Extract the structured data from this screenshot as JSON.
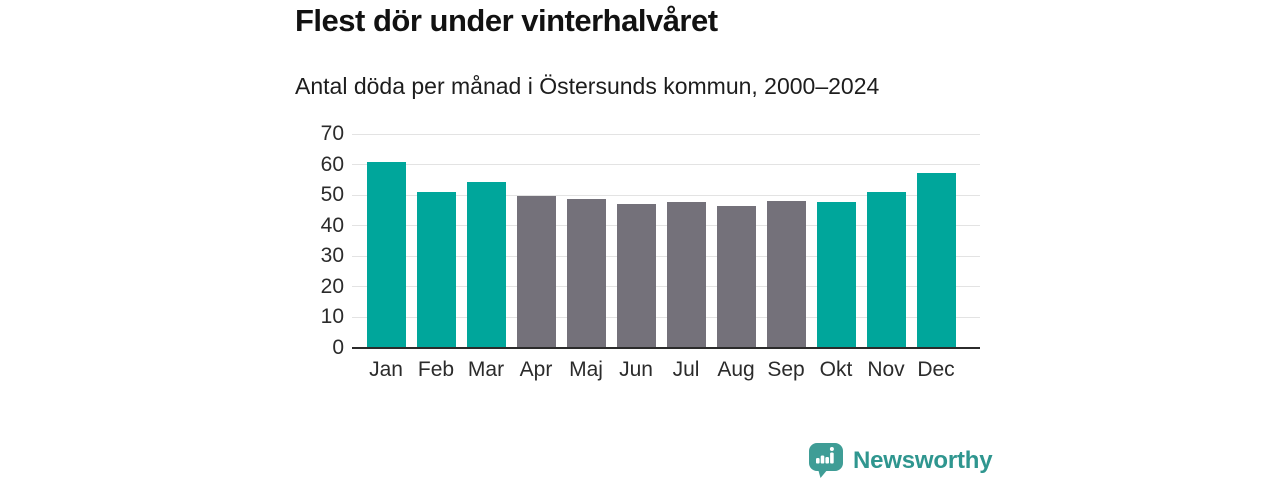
{
  "header": {
    "title": "Flest dör under vinterhalvåret",
    "subtitle": "Antal döda per månad i Östersunds kommun, 2000–2024"
  },
  "chart_data": {
    "type": "bar",
    "title": "Flest dör under vinterhalvåret",
    "subtitle": "Antal döda per månad i Östersunds kommun, 2000–2024",
    "categories": [
      "Jan",
      "Feb",
      "Mar",
      "Apr",
      "Maj",
      "Jun",
      "Jul",
      "Aug",
      "Sep",
      "Okt",
      "Nov",
      "Dec"
    ],
    "values": [
      60.7,
      51.0,
      54.2,
      49.7,
      48.8,
      47.2,
      47.9,
      46.6,
      48.2,
      47.9,
      51.0,
      57.3
    ],
    "bar_colors": [
      "teal",
      "teal",
      "teal",
      "gray",
      "gray",
      "gray",
      "gray",
      "gray",
      "gray",
      "teal",
      "teal",
      "teal"
    ],
    "xlabel": "",
    "ylabel": "",
    "ylim": [
      0,
      70
    ],
    "yticks": [
      0,
      10,
      20,
      30,
      40,
      50,
      60,
      70
    ],
    "grid": "horizontal",
    "legend": "none",
    "colors": {
      "teal": "#00a69b",
      "gray": "#74717a",
      "gridline": "#e3e3e3",
      "axis": "#2b2b2b"
    }
  },
  "footer": {
    "brand": "Newsworthy",
    "brand_color": "#2f968f",
    "logo_color": "#3f9d96"
  }
}
